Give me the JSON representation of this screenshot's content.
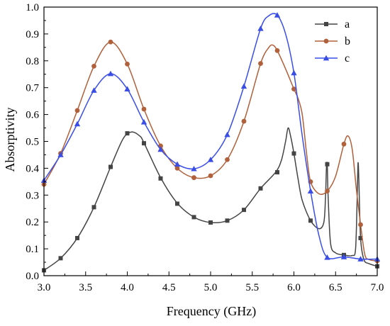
{
  "chart_data": {
    "type": "line",
    "xlabel": "Frequency (GHz)",
    "ylabel": "Absorptivity",
    "xlim": [
      3.0,
      7.0
    ],
    "ylim": [
      0.0,
      1.0
    ],
    "x_ticks": [
      "3.0",
      "3.5",
      "4.0",
      "4.5",
      "5.0",
      "5.5",
      "6.0",
      "6.5",
      "7.0"
    ],
    "y_ticks": [
      "0.0",
      "0.1",
      "0.2",
      "0.3",
      "0.4",
      "0.5",
      "0.6",
      "0.7",
      "0.8",
      "0.9",
      "1.0"
    ],
    "grid": false,
    "legend_position": "top-right",
    "series": [
      {
        "name": "a",
        "color": "#444444",
        "marker": "square",
        "curve": [
          [
            3.0,
            0.02
          ],
          [
            3.2,
            0.065
          ],
          [
            3.4,
            0.14
          ],
          [
            3.6,
            0.255
          ],
          [
            3.8,
            0.405
          ],
          [
            3.95,
            0.51
          ],
          [
            4.05,
            0.535
          ],
          [
            4.15,
            0.52
          ],
          [
            4.2,
            0.495
          ],
          [
            4.4,
            0.365
          ],
          [
            4.6,
            0.27
          ],
          [
            4.8,
            0.218
          ],
          [
            5.0,
            0.198
          ],
          [
            5.2,
            0.205
          ],
          [
            5.4,
            0.245
          ],
          [
            5.6,
            0.325
          ],
          [
            5.78,
            0.385
          ],
          [
            5.85,
            0.43
          ],
          [
            5.9,
            0.5
          ],
          [
            5.93,
            0.55
          ],
          [
            5.96,
            0.52
          ],
          [
            6.0,
            0.455
          ],
          [
            6.05,
            0.36
          ],
          [
            6.1,
            0.28
          ],
          [
            6.2,
            0.205
          ],
          [
            6.3,
            0.175
          ],
          [
            6.36,
            0.2
          ],
          [
            6.38,
            0.3
          ],
          [
            6.39,
            0.4
          ],
          [
            6.4,
            0.415
          ],
          [
            6.41,
            0.3
          ],
          [
            6.44,
            0.12
          ],
          [
            6.5,
            0.085
          ],
          [
            6.6,
            0.077
          ],
          [
            6.7,
            0.075
          ],
          [
            6.74,
            0.1
          ],
          [
            6.76,
            0.3
          ],
          [
            6.77,
            0.42
          ],
          [
            6.78,
            0.35
          ],
          [
            6.8,
            0.14
          ],
          [
            6.84,
            0.06
          ],
          [
            6.9,
            0.045
          ],
          [
            7.0,
            0.035
          ]
        ],
        "markers": [
          [
            3.0,
            0.02
          ],
          [
            3.2,
            0.065
          ],
          [
            3.4,
            0.14
          ],
          [
            3.6,
            0.255
          ],
          [
            3.8,
            0.405
          ],
          [
            4.0,
            0.53
          ],
          [
            4.2,
            0.493
          ],
          [
            4.4,
            0.362
          ],
          [
            4.6,
            0.268
          ],
          [
            4.8,
            0.218
          ],
          [
            5.0,
            0.198
          ],
          [
            5.2,
            0.205
          ],
          [
            5.4,
            0.245
          ],
          [
            5.6,
            0.325
          ],
          [
            5.8,
            0.385
          ],
          [
            6.0,
            0.455
          ],
          [
            6.2,
            0.205
          ],
          [
            6.4,
            0.415
          ],
          [
            6.6,
            0.077
          ],
          [
            6.8,
            0.14
          ],
          [
            7.0,
            0.035
          ]
        ]
      },
      {
        "name": "b",
        "color": "#b0603a",
        "marker": "circle",
        "curve": [
          [
            3.0,
            0.34
          ],
          [
            3.2,
            0.455
          ],
          [
            3.4,
            0.615
          ],
          [
            3.6,
            0.78
          ],
          [
            3.8,
            0.87
          ],
          [
            4.0,
            0.788
          ],
          [
            4.2,
            0.62
          ],
          [
            4.4,
            0.483
          ],
          [
            4.6,
            0.4
          ],
          [
            4.8,
            0.365
          ],
          [
            5.0,
            0.372
          ],
          [
            5.2,
            0.432
          ],
          [
            5.4,
            0.575
          ],
          [
            5.6,
            0.79
          ],
          [
            5.7,
            0.85
          ],
          [
            5.75,
            0.858
          ],
          [
            5.8,
            0.838
          ],
          [
            5.9,
            0.77
          ],
          [
            6.0,
            0.695
          ],
          [
            6.05,
            0.66
          ],
          [
            6.1,
            0.6
          ],
          [
            6.15,
            0.46
          ],
          [
            6.2,
            0.35
          ],
          [
            6.3,
            0.305
          ],
          [
            6.4,
            0.315
          ],
          [
            6.5,
            0.37
          ],
          [
            6.6,
            0.49
          ],
          [
            6.65,
            0.52
          ],
          [
            6.7,
            0.47
          ],
          [
            6.75,
            0.32
          ],
          [
            6.8,
            0.19
          ],
          [
            6.85,
            0.08
          ],
          [
            6.9,
            0.06
          ],
          [
            7.0,
            0.055
          ]
        ],
        "markers": [
          [
            3.0,
            0.34
          ],
          [
            3.2,
            0.455
          ],
          [
            3.4,
            0.615
          ],
          [
            3.6,
            0.78
          ],
          [
            3.8,
            0.87
          ],
          [
            4.0,
            0.788
          ],
          [
            4.2,
            0.62
          ],
          [
            4.4,
            0.483
          ],
          [
            4.6,
            0.4
          ],
          [
            4.8,
            0.365
          ],
          [
            5.0,
            0.372
          ],
          [
            5.2,
            0.432
          ],
          [
            5.4,
            0.575
          ],
          [
            5.6,
            0.79
          ],
          [
            5.8,
            0.838
          ],
          [
            6.0,
            0.695
          ],
          [
            6.2,
            0.35
          ],
          [
            6.4,
            0.315
          ],
          [
            6.6,
            0.49
          ],
          [
            6.8,
            0.19
          ],
          [
            7.0,
            0.055
          ]
        ]
      },
      {
        "name": "c",
        "color": "#3a4ee6",
        "marker": "triangle",
        "curve": [
          [
            3.0,
            0.355
          ],
          [
            3.2,
            0.45
          ],
          [
            3.4,
            0.565
          ],
          [
            3.6,
            0.69
          ],
          [
            3.8,
            0.752
          ],
          [
            4.0,
            0.695
          ],
          [
            4.2,
            0.572
          ],
          [
            4.4,
            0.47
          ],
          [
            4.6,
            0.415
          ],
          [
            4.8,
            0.398
          ],
          [
            5.0,
            0.432
          ],
          [
            5.2,
            0.525
          ],
          [
            5.4,
            0.705
          ],
          [
            5.6,
            0.92
          ],
          [
            5.7,
            0.968
          ],
          [
            5.8,
            0.97
          ],
          [
            5.9,
            0.9
          ],
          [
            6.0,
            0.755
          ],
          [
            6.1,
            0.52
          ],
          [
            6.2,
            0.315
          ],
          [
            6.3,
            0.15
          ],
          [
            6.4,
            0.068
          ],
          [
            6.6,
            0.07
          ],
          [
            6.8,
            0.062
          ],
          [
            7.0,
            0.062
          ]
        ],
        "markers": [
          [
            3.0,
            0.355
          ],
          [
            3.2,
            0.45
          ],
          [
            3.4,
            0.565
          ],
          [
            3.6,
            0.69
          ],
          [
            3.8,
            0.752
          ],
          [
            4.0,
            0.695
          ],
          [
            4.2,
            0.572
          ],
          [
            4.4,
            0.47
          ],
          [
            4.6,
            0.415
          ],
          [
            4.8,
            0.398
          ],
          [
            5.0,
            0.432
          ],
          [
            5.2,
            0.525
          ],
          [
            5.4,
            0.705
          ],
          [
            5.6,
            0.92
          ],
          [
            5.8,
            0.97
          ],
          [
            6.0,
            0.755
          ],
          [
            6.2,
            0.315
          ],
          [
            6.4,
            0.068
          ],
          [
            6.6,
            0.07
          ],
          [
            6.8,
            0.062
          ],
          [
            7.0,
            0.062
          ]
        ]
      }
    ]
  }
}
